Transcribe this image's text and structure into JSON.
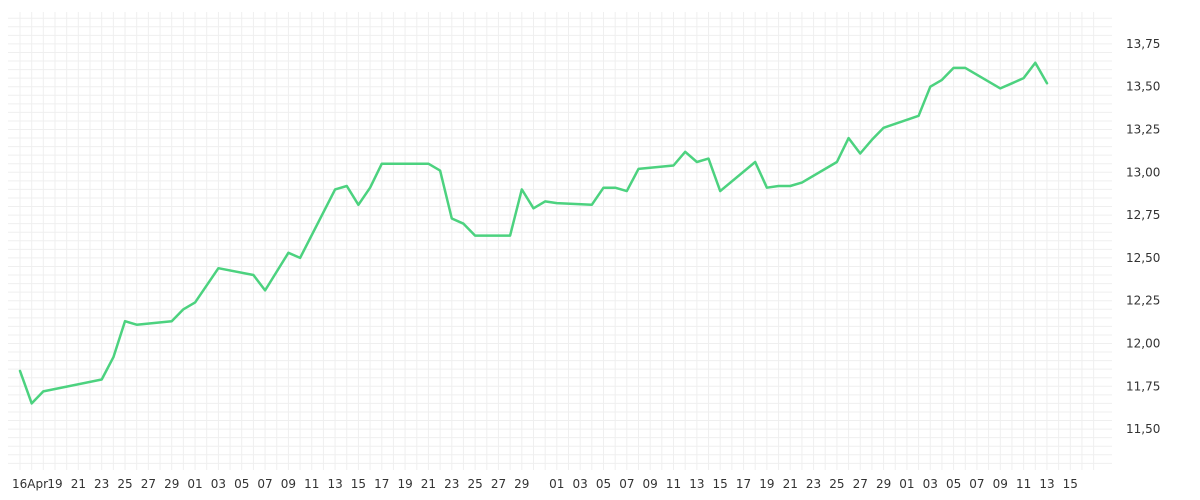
{
  "chart_data": {
    "type": "line",
    "title": "",
    "xlabel": "",
    "ylabel": "",
    "grid": true,
    "ylim": [
      11.3,
      13.9
    ],
    "y_ticks": [
      "11,50",
      "11,75",
      "12,00",
      "12,25",
      "12,50",
      "12,75",
      "13,00",
      "13,25",
      "13,50",
      "13,75"
    ],
    "y_tick_values": [
      11.5,
      11.75,
      12.0,
      12.25,
      12.5,
      12.75,
      13.0,
      13.25,
      13.5,
      13.75
    ],
    "x_ticks": [
      "16Apr",
      "19",
      "21",
      "23",
      "25",
      "27",
      "29",
      "01",
      "03",
      "05",
      "07",
      "09",
      "11",
      "13",
      "15",
      "17",
      "19",
      "21",
      "23",
      "25",
      "27",
      "29",
      "01",
      "03",
      "05",
      "07",
      "09",
      "11",
      "13",
      "15",
      "17",
      "19",
      "21",
      "23",
      "25",
      "27",
      "29",
      "01",
      "03",
      "05",
      "07",
      "09",
      "11",
      "13",
      "15"
    ],
    "x_tick_days": [
      0,
      3,
      5,
      7,
      9,
      11,
      13,
      15,
      17,
      19,
      21,
      23,
      25,
      27,
      29,
      31,
      33,
      35,
      37,
      39,
      41,
      43,
      46,
      48,
      50,
      52,
      54,
      56,
      58,
      60,
      62,
      64,
      66,
      68,
      70,
      72,
      74,
      76,
      78,
      80,
      82,
      84,
      86,
      88,
      90
    ],
    "colors": {
      "line": "#4cd27f",
      "grid": "#efefef",
      "text": "#333333"
    },
    "series": [
      {
        "values": [
          [
            0,
            11.84
          ],
          [
            1,
            11.65
          ],
          [
            2,
            11.72
          ],
          [
            7,
            11.79
          ],
          [
            8,
            11.92
          ],
          [
            9,
            12.13
          ],
          [
            10,
            12.11
          ],
          [
            13,
            12.13
          ],
          [
            14,
            12.2
          ],
          [
            15,
            12.24
          ],
          [
            17,
            12.44
          ],
          [
            20,
            12.4
          ],
          [
            21,
            12.31
          ],
          [
            23,
            12.53
          ],
          [
            24,
            12.5
          ],
          [
            27,
            12.9
          ],
          [
            28,
            12.92
          ],
          [
            29,
            12.81
          ],
          [
            30,
            12.91
          ],
          [
            31,
            13.05
          ],
          [
            35,
            13.05
          ],
          [
            36,
            13.01
          ],
          [
            37,
            12.73
          ],
          [
            38,
            12.7
          ],
          [
            39,
            12.63
          ],
          [
            42,
            12.63
          ],
          [
            43,
            12.9
          ],
          [
            44,
            12.79
          ],
          [
            45,
            12.83
          ],
          [
            46,
            12.82
          ],
          [
            49,
            12.81
          ],
          [
            50,
            12.91
          ],
          [
            51,
            12.91
          ],
          [
            52,
            12.89
          ],
          [
            53,
            13.02
          ],
          [
            56,
            13.04
          ],
          [
            57,
            13.12
          ],
          [
            58,
            13.06
          ],
          [
            59,
            13.08
          ],
          [
            60,
            12.89
          ],
          [
            63,
            13.06
          ],
          [
            64,
            12.91
          ],
          [
            65,
            12.92
          ],
          [
            66,
            12.92
          ],
          [
            67,
            12.94
          ],
          [
            70,
            13.06
          ],
          [
            71,
            13.2
          ],
          [
            72,
            13.11
          ],
          [
            73,
            13.19
          ],
          [
            74,
            13.26
          ],
          [
            77,
            13.33
          ],
          [
            78,
            13.5
          ],
          [
            79,
            13.54
          ],
          [
            80,
            13.61
          ],
          [
            81,
            13.61
          ],
          [
            84,
            13.49
          ],
          [
            85,
            13.52
          ],
          [
            86,
            13.55
          ],
          [
            87,
            13.64
          ],
          [
            88,
            13.52
          ]
        ]
      }
    ]
  }
}
